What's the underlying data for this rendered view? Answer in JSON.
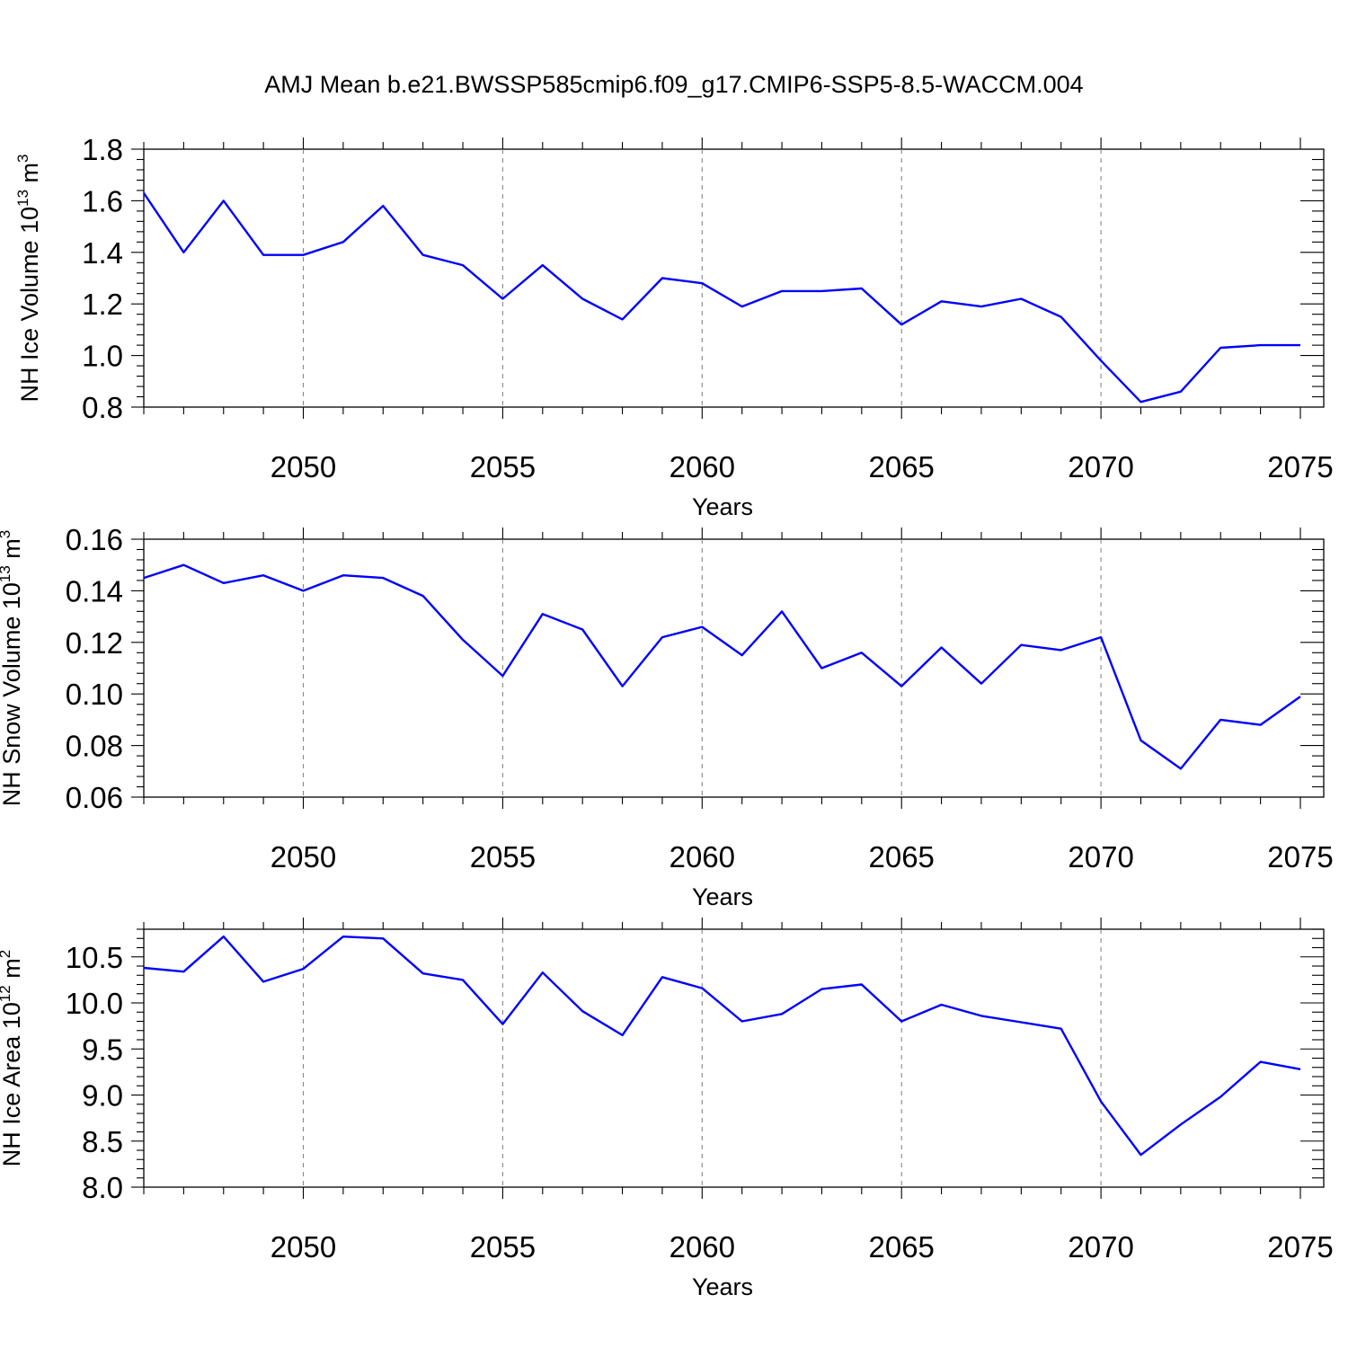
{
  "title": "AMJ Mean b.e21.BWSSP585cmip6.f09_g17.CMIP6-SSP5-8.5-WACCM.004",
  "colors": {
    "series": "#0000ff",
    "grid": "#888888",
    "axis": "#000000"
  },
  "chart_data": [
    {
      "type": "line",
      "xlabel": "Years",
      "ylabel": {
        "text": "NH Ice Volume 10",
        "sup": "13",
        "unit": " m",
        "unit_sup": "3"
      },
      "xlim": [
        2046,
        2075
      ],
      "ylim": [
        0.8,
        1.8
      ],
      "xticks": [
        2050,
        2055,
        2060,
        2065,
        2070,
        2075
      ],
      "xtick_labels": [
        "2050",
        "2055",
        "2060",
        "2065",
        "2070",
        "2075"
      ],
      "yticks": [
        0.8,
        1.0,
        1.2,
        1.4,
        1.6,
        1.8
      ],
      "ytick_labels": [
        "0.8",
        "1.0",
        "1.2",
        "1.4",
        "1.6",
        "1.8"
      ],
      "y_minor_step": 0.04,
      "grid": "x-dashed",
      "x": [
        2046,
        2047,
        2048,
        2049,
        2050,
        2051,
        2052,
        2053,
        2054,
        2055,
        2056,
        2057,
        2058,
        2059,
        2060,
        2061,
        2062,
        2063,
        2064,
        2065,
        2066,
        2067,
        2068,
        2069,
        2070,
        2071,
        2072,
        2073,
        2074,
        2075
      ],
      "y": [
        1.63,
        1.4,
        1.6,
        1.39,
        1.39,
        1.44,
        1.58,
        1.39,
        1.35,
        1.22,
        1.35,
        1.22,
        1.14,
        1.3,
        1.28,
        1.19,
        1.25,
        1.25,
        1.26,
        1.12,
        1.21,
        1.19,
        1.22,
        1.15,
        0.98,
        0.82,
        0.86,
        1.03,
        1.04,
        1.04
      ]
    },
    {
      "type": "line",
      "xlabel": "Years",
      "ylabel": {
        "text": "NH Snow Volume 10",
        "sup": "13",
        "unit": " m",
        "unit_sup": "3"
      },
      "xlim": [
        2046,
        2075
      ],
      "ylim": [
        0.06,
        0.16
      ],
      "xticks": [
        2050,
        2055,
        2060,
        2065,
        2070,
        2075
      ],
      "xtick_labels": [
        "2050",
        "2055",
        "2060",
        "2065",
        "2070",
        "2075"
      ],
      "yticks": [
        0.06,
        0.08,
        0.1,
        0.12,
        0.14,
        0.16
      ],
      "ytick_labels": [
        "0.06",
        "0.08",
        "0.10",
        "0.12",
        "0.14",
        "0.16"
      ],
      "y_minor_step": 0.004,
      "grid": "x-dashed",
      "x": [
        2046,
        2047,
        2048,
        2049,
        2050,
        2051,
        2052,
        2053,
        2054,
        2055,
        2056,
        2057,
        2058,
        2059,
        2060,
        2061,
        2062,
        2063,
        2064,
        2065,
        2066,
        2067,
        2068,
        2069,
        2070,
        2071,
        2072,
        2073,
        2074,
        2075
      ],
      "y": [
        0.145,
        0.15,
        0.143,
        0.146,
        0.14,
        0.146,
        0.145,
        0.138,
        0.121,
        0.107,
        0.131,
        0.125,
        0.103,
        0.122,
        0.126,
        0.115,
        0.132,
        0.11,
        0.116,
        0.103,
        0.118,
        0.104,
        0.119,
        0.117,
        0.122,
        0.082,
        0.071,
        0.09,
        0.088,
        0.099
      ]
    },
    {
      "type": "line",
      "xlabel": "Years",
      "ylabel": {
        "text": "NH Ice Area 10",
        "sup": "12",
        "unit": " m",
        "unit_sup": "2"
      },
      "xlim": [
        2046,
        2075
      ],
      "ylim": [
        8.0,
        10.8
      ],
      "xticks": [
        2050,
        2055,
        2060,
        2065,
        2070,
        2075
      ],
      "xtick_labels": [
        "2050",
        "2055",
        "2060",
        "2065",
        "2070",
        "2075"
      ],
      "yticks": [
        8.0,
        8.5,
        9.0,
        9.5,
        10.0,
        10.5
      ],
      "ytick_labels": [
        "8.0",
        "8.5",
        "9.0",
        "9.5",
        "10.0",
        "10.5"
      ],
      "y_minor_step": 0.1,
      "grid": "x-dashed",
      "x": [
        2046,
        2047,
        2048,
        2049,
        2050,
        2051,
        2052,
        2053,
        2054,
        2055,
        2056,
        2057,
        2058,
        2059,
        2060,
        2061,
        2062,
        2063,
        2064,
        2065,
        2066,
        2067,
        2068,
        2069,
        2070,
        2071,
        2072,
        2073,
        2074,
        2075
      ],
      "y": [
        10.38,
        10.34,
        10.72,
        10.23,
        10.37,
        10.72,
        10.7,
        10.32,
        10.25,
        9.77,
        10.33,
        9.91,
        9.65,
        10.28,
        10.16,
        9.8,
        9.88,
        10.15,
        10.2,
        9.8,
        9.98,
        9.86,
        9.79,
        9.72,
        8.93,
        8.35,
        8.68,
        8.98,
        9.36,
        9.28
      ]
    }
  ]
}
